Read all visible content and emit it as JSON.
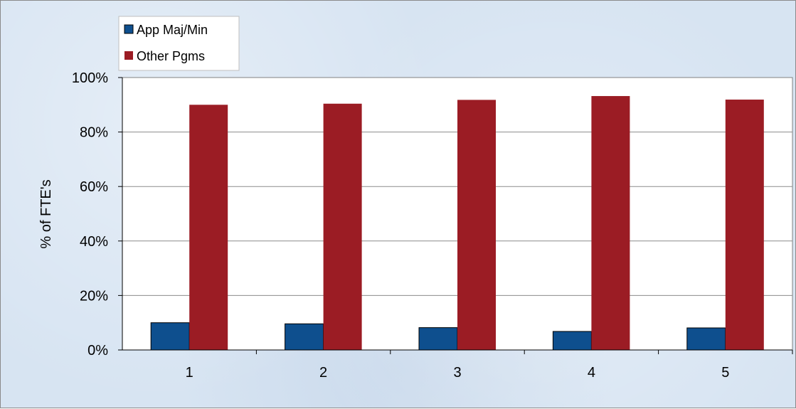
{
  "chart_data": {
    "type": "bar",
    "categories": [
      "1",
      "2",
      "3",
      "4",
      "5"
    ],
    "series": [
      {
        "name": "App Maj/Min",
        "color": "#0e4f8e",
        "values": [
          10,
          9.6,
          8.2,
          6.8,
          8.1
        ]
      },
      {
        "name": "Other Pgms",
        "color": "#9b1c24",
        "values": [
          90,
          90.4,
          91.8,
          93.2,
          91.9
        ]
      }
    ],
    "xlabel": "",
    "ylabel": "% of FTE's",
    "ylim": [
      0,
      100
    ],
    "yticks": [
      "0%",
      "20%",
      "40%",
      "60%",
      "80%",
      "100%"
    ],
    "grid": true,
    "legend": "top-left"
  }
}
